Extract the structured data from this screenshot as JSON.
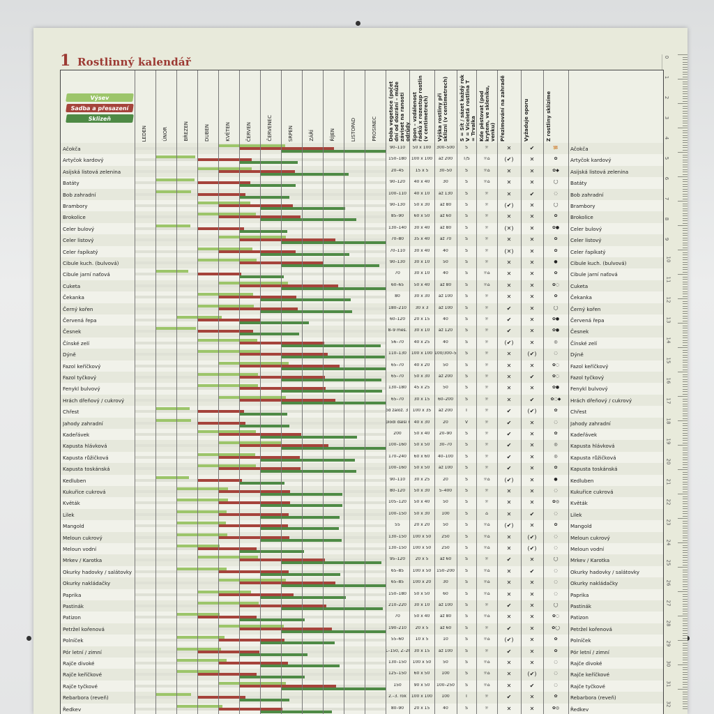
{
  "title": {
    "number": "1",
    "text": "Rostlinný kalendář"
  },
  "legend": {
    "sow": "Výsev",
    "plant": "Sadba a přesazení",
    "harvest": "Sklizeň"
  },
  "colors": {
    "sow": "#9cc56a",
    "plant": "#a5433b",
    "harvest": "#4e8a45",
    "title": "#9c3a33"
  },
  "months": [
    "LEDEN",
    "ÚNOR",
    "BŘEZEN",
    "DUBEN",
    "KVĚTEN",
    "ČERVEN",
    "ČERVENEC",
    "SRPEN",
    "ZÁŘÍ",
    "ŘÍJEN",
    "LISTOPAD",
    "PROSINEC"
  ],
  "columns": [
    "Doba vegetace (počet dní od dozrání – může záviset na ranosti odrůdy",
    "Spon – vzdálenost řádků x rozestup rostlin (v centimetrech)",
    "Výška rostliny při sklizni (v centimetrech)",
    "S = Sít / sázet každý rok V = Víceletá rostlina T = Trvalka",
    "Kde pěstovat (pod krytem, ve skleníku, venku)",
    "Přezimování na zahradě",
    "Vyžaduje oporu",
    "Z rostliny sklízíme"
  ],
  "ruler_numbers": [
    "0",
    "1",
    "2",
    "3",
    "4",
    "5",
    "6",
    "7",
    "8",
    "9",
    "10",
    "11",
    "12",
    "13",
    "14",
    "15",
    "16",
    "17",
    "18",
    "19",
    "20",
    "21",
    "22",
    "23",
    "24",
    "25",
    "26",
    "27",
    "28",
    "29",
    "30",
    "31",
    "32"
  ],
  "rows": [
    {
      "name": "Ačokča",
      "veg": "90–110",
      "spon": "50 x 100",
      "vyska": "300–500",
      "typ": "S",
      "kde": "☼",
      "zima": "✕",
      "opora": "✔",
      "skliz": "🫚"
    },
    {
      "name": "Artyčok kardový",
      "veg": "150–180",
      "spon": "100 x 100",
      "vyska": "až 200",
      "typ": "T/S",
      "kde": "☼⌂",
      "zima": "(✔)",
      "opora": "✕",
      "skliz": "✿"
    },
    {
      "name": "Asijská listová zelenina",
      "veg": "20–45",
      "spon": "15 x 5",
      "vyska": "30–50",
      "typ": "S",
      "kde": "☼⌂",
      "zima": "✕",
      "opora": "✕",
      "skliz": "✿◆"
    },
    {
      "name": "Batáty",
      "veg": "90–120",
      "spon": "40 x 40",
      "vyska": "30",
      "typ": "S",
      "kde": "☼⌂",
      "zima": "✕",
      "opora": "✕",
      "skliz": "◯"
    },
    {
      "name": "Bob zahradní",
      "veg": "100–110",
      "spon": "40 x 10",
      "vyska": "až 130",
      "typ": "S",
      "kde": "☼",
      "zima": "✕",
      "opora": "✔",
      "skliz": "◌"
    },
    {
      "name": "Brambory",
      "veg": "90–130",
      "spon": "50 x 30",
      "vyska": "až 80",
      "typ": "S",
      "kde": "☼",
      "zima": "(✔)",
      "opora": "✕",
      "skliz": "◯"
    },
    {
      "name": "Brokolice",
      "veg": "85–90",
      "spon": "60 x 50",
      "vyska": "až 60",
      "typ": "S",
      "kde": "☼",
      "zima": "✕",
      "opora": "✕",
      "skliz": "✿"
    },
    {
      "name": "Celer bulový",
      "veg": "130–140",
      "spon": "30 x 40",
      "vyska": "až 80",
      "typ": "S",
      "kde": "☼",
      "zima": "(✕)",
      "opora": "✕",
      "skliz": "✿●"
    },
    {
      "name": "Celer listový",
      "veg": "70–80",
      "spon": "35 x 40",
      "vyska": "až 70",
      "typ": "S",
      "kde": "☼",
      "zima": "✕",
      "opora": "✕",
      "skliz": "✿"
    },
    {
      "name": "Celer řapíkatý",
      "veg": "70–110",
      "spon": "30 x 40",
      "vyska": "40",
      "typ": "S",
      "kde": "☼",
      "zima": "(✕)",
      "opora": "✕",
      "skliz": "✿"
    },
    {
      "name": "Cibule kuch. (bulvová)",
      "veg": "90–130",
      "spon": "30 x 10",
      "vyska": "50",
      "typ": "S",
      "kde": "☼",
      "zima": "✕",
      "opora": "✕",
      "skliz": "●"
    },
    {
      "name": "Cibule jarní naťová",
      "veg": "70",
      "spon": "30 x 10",
      "vyska": "40",
      "typ": "S",
      "kde": "☼⌂",
      "zima": "✕",
      "opora": "✕",
      "skliz": "✿"
    },
    {
      "name": "Cuketa",
      "veg": "60–65",
      "spon": "50 x 40",
      "vyska": "až 80",
      "typ": "S",
      "kde": "☼⌂",
      "zima": "✕",
      "opora": "✕",
      "skliz": "✿◌"
    },
    {
      "name": "Čekanka",
      "veg": "80",
      "spon": "30 x 30",
      "vyska": "až 100",
      "typ": "S",
      "kde": "☼",
      "zima": "✕",
      "opora": "✕",
      "skliz": "✿"
    },
    {
      "name": "Černý kořen",
      "veg": "180–210",
      "spon": "30 x 3",
      "vyska": "až 100",
      "typ": "S",
      "kde": "☼",
      "zima": "✔",
      "opora": "✕",
      "skliz": "◯"
    },
    {
      "name": "Červená řepa",
      "veg": "60–120",
      "spon": "20 x 15",
      "vyska": "40",
      "typ": "S",
      "kde": "☼",
      "zima": "✔",
      "opora": "✕",
      "skliz": "✿●"
    },
    {
      "name": "Česnek",
      "veg": "8–9 měs.",
      "spon": "30 x 10",
      "vyska": "až 120",
      "typ": "S",
      "kde": "☼",
      "zima": "✔",
      "opora": "✕",
      "skliz": "✿●"
    },
    {
      "name": "Čínské zelí",
      "veg": "56–70",
      "spon": "40 x 25",
      "vyska": "40",
      "typ": "S",
      "kde": "☼",
      "zima": "(✔)",
      "opora": "✕",
      "skliz": "◎"
    },
    {
      "name": "Dýně",
      "veg": "110–130",
      "spon": "100 x 100",
      "vyska": "100/300–500",
      "typ": "S",
      "kde": "☼",
      "zima": "✕",
      "opora": "(✔)",
      "skliz": "◌"
    },
    {
      "name": "Fazol keříčkový",
      "veg": "65–70",
      "spon": "40 x 20",
      "vyska": "50",
      "typ": "S",
      "kde": "☼",
      "zima": "✕",
      "opora": "✕",
      "skliz": "✿◌"
    },
    {
      "name": "Fazol tyčkový",
      "veg": "65–70",
      "spon": "50 x 30",
      "vyska": "až 200",
      "typ": "S",
      "kde": "☼",
      "zima": "✕",
      "opora": "✔",
      "skliz": "✿◌"
    },
    {
      "name": "Fenykl bulvový",
      "veg": "130–180",
      "spon": "45 x 25",
      "vyska": "50",
      "typ": "S",
      "kde": "☼",
      "zima": "✕",
      "opora": "✕",
      "skliz": "✿●"
    },
    {
      "name": "Hrách dřeňový / cukrový",
      "veg": "65–70",
      "spon": "30 x 15",
      "vyska": "60–200",
      "typ": "S",
      "kde": "☼",
      "zima": "✕",
      "opora": "✔",
      "skliz": "✿◌◆"
    },
    {
      "name": "Chřest",
      "veg": "od založ. 3 roky",
      "spon": "100 x 35",
      "vyska": "až 200",
      "typ": "T",
      "kde": "☼",
      "zima": "✔",
      "opora": "(✔)",
      "skliz": "✿"
    },
    {
      "name": "Jahody zahradní",
      "veg": "plodí další rok",
      "spon": "40 x 30",
      "vyska": "20",
      "typ": "V",
      "kde": "☼",
      "zima": "✔",
      "opora": "✕",
      "skliz": "◌"
    },
    {
      "name": "Kadeřávek",
      "veg": "200",
      "spon": "50 x 40",
      "vyska": "20–90",
      "typ": "S",
      "kde": "☼",
      "zima": "✔",
      "opora": "✕",
      "skliz": "✿"
    },
    {
      "name": "Kapusta hlávková",
      "veg": "100–160",
      "spon": "50 x 50",
      "vyska": "30–70",
      "typ": "S",
      "kde": "☼",
      "zima": "✔",
      "opora": "✕",
      "skliz": "◎"
    },
    {
      "name": "Kapusta růžičková",
      "veg": "170–240",
      "spon": "60 x 60",
      "vyska": "40–100",
      "typ": "S",
      "kde": "☼",
      "zima": "✔",
      "opora": "✕",
      "skliz": "◎"
    },
    {
      "name": "Kapusta toskánská",
      "veg": "100–160",
      "spon": "50 x 50",
      "vyska": "až 100",
      "typ": "S",
      "kde": "☼",
      "zima": "✔",
      "opora": "✕",
      "skliz": "✿"
    },
    {
      "name": "Kedluben",
      "veg": "90–110",
      "spon": "30 x 25",
      "vyska": "20",
      "typ": "S",
      "kde": "☼⌂",
      "zima": "(✔)",
      "opora": "✕",
      "skliz": "●"
    },
    {
      "name": "Kukuřice cukrová",
      "veg": "80–120",
      "spon": "50 x 30",
      "vyska": "5–400",
      "typ": "S",
      "kde": "☼",
      "zima": "✕",
      "opora": "✕",
      "skliz": "◌"
    },
    {
      "name": "Květák",
      "veg": "105–120",
      "spon": "50 x 40",
      "vyska": "50",
      "typ": "S",
      "kde": "☼",
      "zima": "✕",
      "opora": "✕",
      "skliz": "✿◎"
    },
    {
      "name": "Lilek",
      "veg": "100–150",
      "spon": "50 x 30",
      "vyska": "100",
      "typ": "S",
      "kde": "⌂",
      "zima": "✕",
      "opora": "✔",
      "skliz": "◌"
    },
    {
      "name": "Mangold",
      "veg": "55",
      "spon": "20 x 20",
      "vyska": "50",
      "typ": "S",
      "kde": "☼⌂",
      "zima": "(✔)",
      "opora": "✕",
      "skliz": "✿"
    },
    {
      "name": "Meloun cukrový",
      "veg": "130–150",
      "spon": "100 x 50",
      "vyska": "250",
      "typ": "S",
      "kde": "☼⌂",
      "zima": "✕",
      "opora": "(✔)",
      "skliz": "◌"
    },
    {
      "name": "Meloun vodní",
      "veg": "130–150",
      "spon": "100 x 50",
      "vyska": "250",
      "typ": "S",
      "kde": "☼⌂",
      "zima": "✕",
      "opora": "(✔)",
      "skliz": "◌"
    },
    {
      "name": "Mrkev / Karotka",
      "veg": "95–120",
      "spon": "20 x 5",
      "vyska": "až 60",
      "typ": "S",
      "kde": "☼",
      "zima": "✔",
      "opora": "✕",
      "skliz": "◯"
    },
    {
      "name": "Okurky hadovky / salátovky",
      "veg": "65–85",
      "spon": "100 x 50",
      "vyska": "150–200",
      "typ": "S",
      "kde": "☼⌂",
      "zima": "✕",
      "opora": "✔",
      "skliz": "◌"
    },
    {
      "name": "Okurky nakládačky",
      "veg": "65–85",
      "spon": "100 x 20",
      "vyska": "30",
      "typ": "S",
      "kde": "☼⌂",
      "zima": "✕",
      "opora": "✕",
      "skliz": "◌"
    },
    {
      "name": "Paprika",
      "veg": "150–180",
      "spon": "50 x 50",
      "vyska": "60",
      "typ": "S",
      "kde": "☼⌂",
      "zima": "✕",
      "opora": "✕",
      "skliz": "◌"
    },
    {
      "name": "Pastinák",
      "veg": "210–220",
      "spon": "30 x 10",
      "vyska": "až 100",
      "typ": "S",
      "kde": "☼",
      "zima": "✔",
      "opora": "✕",
      "skliz": "◯"
    },
    {
      "name": "Patizon",
      "veg": "70",
      "spon": "50 x 40",
      "vyska": "až 80",
      "typ": "S",
      "kde": "☼⌂",
      "zima": "✕",
      "opora": "✕",
      "skliz": "✿◌"
    },
    {
      "name": "Petržel kořenová",
      "veg": "190–210",
      "spon": "20 x 5",
      "vyska": "až 60",
      "typ": "S",
      "kde": "☼",
      "zima": "✔",
      "opora": "✕",
      "skliz": "✿◯"
    },
    {
      "name": "Polníček",
      "veg": "55–60",
      "spon": "10 x 5",
      "vyska": "10",
      "typ": "S",
      "kde": "☼⌂",
      "zima": "(✔)",
      "opora": "✕",
      "skliz": "✿"
    },
    {
      "name": "Pór letní / zimní",
      "veg": "L–150, Z–200",
      "spon": "30 x 15",
      "vyska": "až 100",
      "typ": "S",
      "kde": "☼",
      "zima": "✔",
      "opora": "✕",
      "skliz": "✿"
    },
    {
      "name": "Rajče divoké",
      "veg": "130–150",
      "spon": "100 x 50",
      "vyska": "50",
      "typ": "S",
      "kde": "☼⌂",
      "zima": "✕",
      "opora": "✕",
      "skliz": "◌"
    },
    {
      "name": "Rajče keříčkové",
      "veg": "125–150",
      "spon": "60 x 50",
      "vyska": "100",
      "typ": "S",
      "kde": "☼⌂",
      "zima": "✕",
      "opora": "(✔)",
      "skliz": "◌"
    },
    {
      "name": "Rajče tyčkové",
      "veg": "150",
      "spon": "90 x 50",
      "vyska": "100–250",
      "typ": "S",
      "kde": "☼⌂",
      "zima": "✕",
      "opora": "✔",
      "skliz": "◌"
    },
    {
      "name": "Rebarbora (reveň)",
      "veg": "2.–3. rok",
      "spon": "100 x 100",
      "vyska": "100",
      "typ": "T",
      "kde": "☼",
      "zima": "✔",
      "opora": "✕",
      "skliz": "✿"
    },
    {
      "name": "Ředkev",
      "veg": "80–90",
      "spon": "20 x 15",
      "vyska": "40",
      "typ": "S",
      "kde": "☼",
      "zima": "✕",
      "opora": "✕",
      "skliz": "✿◎"
    }
  ]
}
